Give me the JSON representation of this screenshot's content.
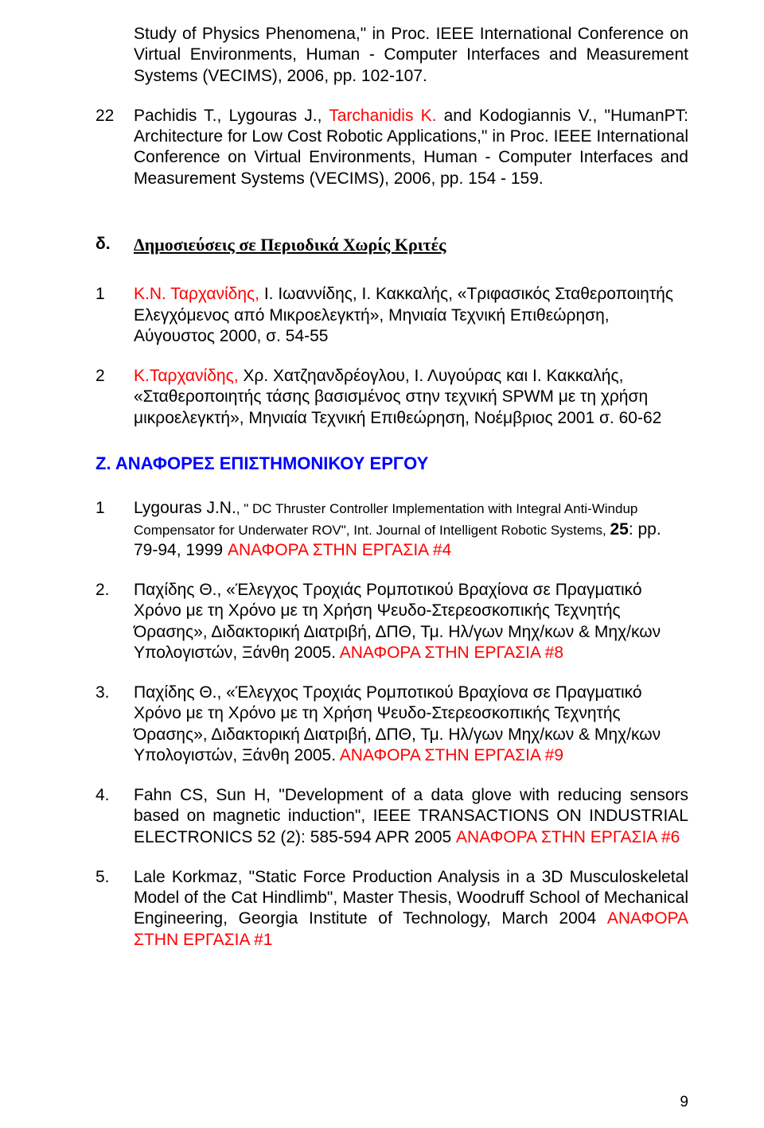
{
  "colors": {
    "text": "#000000",
    "highlight": "#ff0000",
    "section_heading": "#0000ff",
    "background": "#ffffff"
  },
  "top": {
    "p1": "Study of Physics Phenomena,\" in Proc. IEEE International Conference on Virtual Environments, Human - Computer Interfaces and Measurement Systems (VECIMS), 2006, pp. 102-107.",
    "item22_num": "22",
    "item22_a": "Pachidis T., Lygouras J., ",
    "item22_b_red": "Tarchanidis K.",
    "item22_c": " and Kodogiannis V., \"HumanPT: Architecture for Low Cost Robotic Applications,\" in Proc. IEEE International Conference on Virtual Environments, Human - Computer Interfaces and Measurement Systems (VECIMS), 2006, pp. 154 - 159."
  },
  "sec_d": {
    "letter": "δ.",
    "title": "Δημοσιεύσεις σε Περιοδικά Χωρίς Κριτές",
    "item1_num": "1",
    "item1_a_red": "Κ.Ν. Ταρχανίδης,",
    "item1_b": " Ι. Ιωαννίδης, Ι. Κακκαλής, «Τριφασικός Σταθεροποιητής Ελεγχόμενος από Μικροελεγκτή», Μηνιαία Τεχνική Επιθεώρηση, Αύγουστος 2000, σ. 54-55",
    "item2_num": "2",
    "item2_a_red": "Κ.Ταρχανίδης,",
    "item2_b": " Χρ. Χατζηανδρέογλου, Ι. Λυγούρας και Ι. Κακκαλής, «Σταθεροποιητής τάσης βασισμένος στην τεχνική SPWM με τη χρήση μικροελεγκτή», Μηνιαία Τεχνική Επιθεώρηση, Νοέμβριος 2001 σ. 60-62"
  },
  "sec_z": {
    "heading": "Ζ. ΑΝΑΦΟΡΕΣ ΕΠΙΣΤΗΜΟΝΙΚΟΥ ΕΡΓΟΥ",
    "item1_num": "1",
    "item1_a": "Lygouras J.N.",
    "item1_b": ", \" DC Thruster Controller Implementation with Integral Anti-Windup Compensator for Underwater ROV\", Int. Journal of Intelligent Robotic Systems, ",
    "item1_c_bold": "25",
    "item1_d": ": pp. 79-94, 1999 ",
    "item1_e_red": "ΑΝΑΦΟΡΑ ΣΤΗΝ ΕΡΓΑΣΙΑ #4",
    "item2_num": "2.",
    "item2_a": "Παχίδης Θ., «Έλεγχος Τροχιάς Ρομποτικού Βραχίονα σε Πραγματικό Χρόνο με τη Χρόνο με τη Χρήση Ψευδο-Στερεοσκοπικής Τεχνητής Όρασης», Διδακτορική Διατριβή, ΔΠΘ, Τμ. Ηλ/γων Μηχ/κων & Μηχ/κων Υπολογιστών, Ξάνθη 2005. ",
    "item2_b_red": "ΑΝΑΦΟΡΑ ΣΤΗΝ ΕΡΓΑΣΙΑ #8",
    "item3_num": "3.",
    "item3_a": "Παχίδης Θ., «Έλεγχος Τροχιάς Ρομποτικού Βραχίονα σε Πραγματικό Χρόνο με τη Χρόνο με τη Χρήση Ψευδο-Στερεοσκοπικής Τεχνητής Όρασης», Διδακτορική Διατριβή, ΔΠΘ, Τμ. Ηλ/γων Μηχ/κων & Μηχ/κων Υπολογιστών, Ξάνθη 2005. ",
    "item3_b_red": "ΑΝΑΦΟΡΑ ΣΤΗΝ ΕΡΓΑΣΙΑ #9",
    "item4_num": "4.",
    "item4_a": "Fahn CS, Sun H, \"Development of a data glove with reducing sensors based on magnetic induction\", IEEE TRANSACTIONS ON INDUSTRIAL ELECTRONICS 52 (2): 585-594 APR 2005 ",
    "item4_b_red": "ΑΝΑΦΟΡΑ ΣΤΗΝ ΕΡΓΑΣΙΑ #6",
    "item5_num": "5.",
    "item5_a": "Lale Korkmaz, \"Static Force Production Analysis in a 3D Musculoskeletal Model of the Cat Hindlimb\", Master Thesis, Woodruff School of Mechanical Engineering, Georgia Institute of Technology, March 2004 ",
    "item5_b_red": "ΑΝΑΦΟΡΑ ΣΤΗΝ ΕΡΓΑΣΙΑ #1"
  },
  "page_number": "9"
}
